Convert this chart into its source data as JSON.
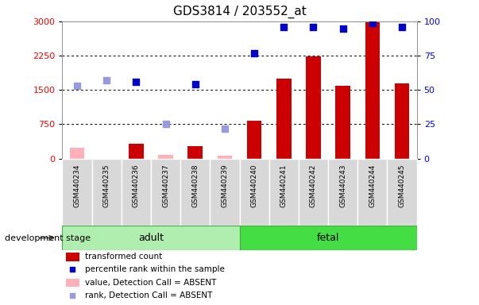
{
  "title": "GDS3814 / 203552_at",
  "samples": [
    "GSM440234",
    "GSM440235",
    "GSM440236",
    "GSM440237",
    "GSM440238",
    "GSM440239",
    "GSM440240",
    "GSM440241",
    "GSM440242",
    "GSM440243",
    "GSM440244",
    "GSM440245"
  ],
  "absent": [
    true,
    true,
    false,
    true,
    false,
    true,
    false,
    false,
    false,
    false,
    false,
    false
  ],
  "transformed_count": [
    230,
    0,
    320,
    80,
    280,
    60,
    820,
    1750,
    2240,
    1590,
    2980,
    1640
  ],
  "percentile_rank": [
    53,
    57,
    56,
    25,
    54,
    22,
    77,
    96,
    96,
    95,
    99,
    96
  ],
  "ylim_left": [
    0,
    3000
  ],
  "ylim_right": [
    0,
    100
  ],
  "yticks_left": [
    0,
    750,
    1500,
    2250,
    3000
  ],
  "yticks_right": [
    0,
    25,
    50,
    75,
    100
  ],
  "bar_width": 0.5,
  "bar_color_present": "#cc0000",
  "bar_color_absent": "#ffb0b8",
  "dot_color_present": "#0000cc",
  "dot_color_absent": "#9999dd",
  "dot_size": 30,
  "background_color": "#ffffff",
  "group_label": "development stage",
  "adult_color": "#b0eeb0",
  "fetal_color": "#44dd44",
  "gray_box_color": "#d8d8d8",
  "legend_items": [
    {
      "label": "transformed count",
      "color": "#cc0000",
      "type": "bar"
    },
    {
      "label": "percentile rank within the sample",
      "color": "#0000cc",
      "type": "dot"
    },
    {
      "label": "value, Detection Call = ABSENT",
      "color": "#ffb0b8",
      "type": "bar"
    },
    {
      "label": "rank, Detection Call = ABSENT",
      "color": "#9999dd",
      "type": "dot"
    }
  ]
}
